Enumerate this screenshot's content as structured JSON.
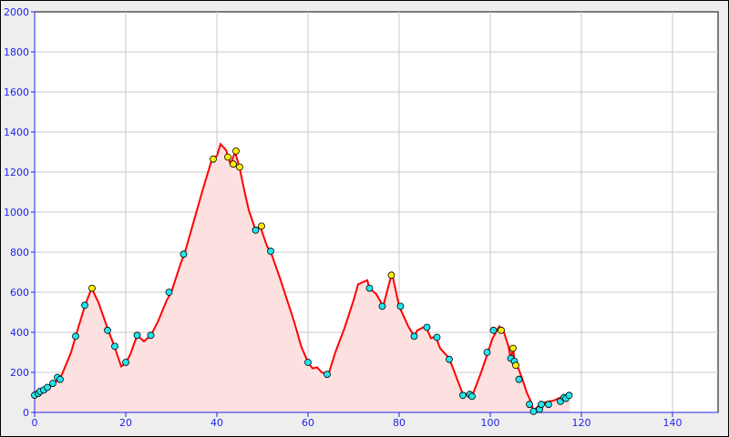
{
  "chart_data": {
    "type": "area",
    "title": "",
    "xlabel": "",
    "ylabel": "",
    "xlim": [
      0,
      150
    ],
    "ylim": [
      0,
      2000
    ],
    "grid": true,
    "x_ticks": [
      "0",
      "20",
      "40",
      "60",
      "80",
      "100",
      "120",
      "140"
    ],
    "y_ticks": [
      "0",
      "200",
      "400",
      "600",
      "800",
      "1000",
      "1200",
      "1400",
      "1600",
      "1800",
      "2000"
    ],
    "colors": {
      "line": "#ff0000",
      "fill": "#fde0e0",
      "marker_a": "#22e6ee",
      "marker_b": "#ffee00",
      "axis": "#2222ee",
      "grid": "#c8c8c8"
    },
    "profile": [
      [
        0,
        86
      ],
      [
        2,
        110
      ],
      [
        4,
        140
      ],
      [
        5.5,
        170
      ],
      [
        6,
        190
      ],
      [
        8,
        300
      ],
      [
        9,
        380
      ],
      [
        11,
        530
      ],
      [
        12.5,
        620
      ],
      [
        14,
        550
      ],
      [
        16,
        420
      ],
      [
        17.5,
        330
      ],
      [
        19,
        230
      ],
      [
        20,
        245
      ],
      [
        21,
        290
      ],
      [
        22.5,
        385
      ],
      [
        24,
        355
      ],
      [
        25.5,
        385
      ],
      [
        27,
        450
      ],
      [
        29,
        560
      ],
      [
        30,
        600
      ],
      [
        32,
        740
      ],
      [
        33,
        800
      ],
      [
        35,
        960
      ],
      [
        37,
        1120
      ],
      [
        39,
        1270
      ],
      [
        40,
        1280
      ],
      [
        40.8,
        1340
      ],
      [
        42,
        1310
      ],
      [
        43,
        1240
      ],
      [
        44,
        1300
      ],
      [
        45,
        1220
      ],
      [
        46,
        1110
      ],
      [
        47,
        1010
      ],
      [
        48.5,
        910
      ],
      [
        49.5,
        930
      ],
      [
        51,
        830
      ],
      [
        52,
        790
      ],
      [
        54,
        660
      ],
      [
        55,
        590
      ],
      [
        57,
        450
      ],
      [
        58.5,
        330
      ],
      [
        60,
        250
      ],
      [
        61,
        220
      ],
      [
        62,
        225
      ],
      [
        63,
        200
      ],
      [
        64.5,
        190
      ],
      [
        66,
        300
      ],
      [
        68,
        420
      ],
      [
        70,
        560
      ],
      [
        71,
        640
      ],
      [
        72,
        650
      ],
      [
        73,
        660
      ],
      [
        73.5,
        620
      ],
      [
        75,
        590
      ],
      [
        76.5,
        530
      ],
      [
        78,
        660
      ],
      [
        78.5,
        690
      ],
      [
        80,
        530
      ],
      [
        82,
        430
      ],
      [
        83.3,
        380
      ],
      [
        84,
        410
      ],
      [
        85.8,
        430
      ],
      [
        87,
        370
      ],
      [
        88,
        380
      ],
      [
        89,
        320
      ],
      [
        91,
        270
      ],
      [
        93,
        150
      ],
      [
        94,
        90
      ],
      [
        95.5,
        95
      ],
      [
        96,
        80
      ],
      [
        98,
        200
      ],
      [
        99.5,
        300
      ],
      [
        100.5,
        370
      ],
      [
        101.5,
        410
      ],
      [
        102,
        430
      ],
      [
        103,
        400
      ],
      [
        104,
        330
      ],
      [
        104.5,
        270
      ],
      [
        105,
        320
      ],
      [
        105.3,
        260
      ],
      [
        106,
        230
      ],
      [
        107,
        170
      ],
      [
        108,
        100
      ],
      [
        109,
        50
      ],
      [
        109.5,
        0
      ],
      [
        110,
        20
      ],
      [
        111,
        40
      ],
      [
        112,
        50
      ],
      [
        114,
        60
      ],
      [
        115,
        70
      ],
      [
        116,
        80
      ],
      [
        117.5,
        90
      ]
    ],
    "markers_cyan": [
      [
        0,
        86
      ],
      [
        0.8,
        95
      ],
      [
        1.2,
        105
      ],
      [
        2,
        112
      ],
      [
        2.8,
        125
      ],
      [
        4,
        145
      ],
      [
        5,
        175
      ],
      [
        5.6,
        165
      ],
      [
        9,
        380
      ],
      [
        11,
        535
      ],
      [
        16,
        410
      ],
      [
        17.6,
        330
      ],
      [
        20,
        250
      ],
      [
        22.5,
        385
      ],
      [
        25.5,
        385
      ],
      [
        29.5,
        600
      ],
      [
        32.7,
        790
      ],
      [
        48.5,
        910
      ],
      [
        51.8,
        805
      ],
      [
        60,
        250
      ],
      [
        64.2,
        190
      ],
      [
        73.5,
        620
      ],
      [
        76.3,
        530
      ],
      [
        80.3,
        530
      ],
      [
        83.3,
        380
      ],
      [
        86.1,
        425
      ],
      [
        88.3,
        375
      ],
      [
        91,
        265
      ],
      [
        94,
        85
      ],
      [
        95.5,
        90
      ],
      [
        96,
        80
      ],
      [
        99.3,
        300
      ],
      [
        100.7,
        410
      ],
      [
        104.5,
        270
      ],
      [
        105.3,
        255
      ],
      [
        106.3,
        165
      ],
      [
        108.6,
        40
      ],
      [
        109.5,
        5
      ],
      [
        110.8,
        15
      ],
      [
        111.2,
        40
      ],
      [
        112.8,
        40
      ],
      [
        115.4,
        55
      ],
      [
        116.2,
        75
      ],
      [
        116.6,
        70
      ],
      [
        117.3,
        85
      ]
    ],
    "markers_yellow": [
      [
        12.6,
        620
      ],
      [
        39.2,
        1265
      ],
      [
        42.4,
        1275
      ],
      [
        43.6,
        1240
      ],
      [
        44.2,
        1305
      ],
      [
        45,
        1225
      ],
      [
        49.8,
        930
      ],
      [
        78.3,
        685
      ],
      [
        102.4,
        410
      ],
      [
        105,
        320
      ],
      [
        105.6,
        235
      ]
    ]
  }
}
